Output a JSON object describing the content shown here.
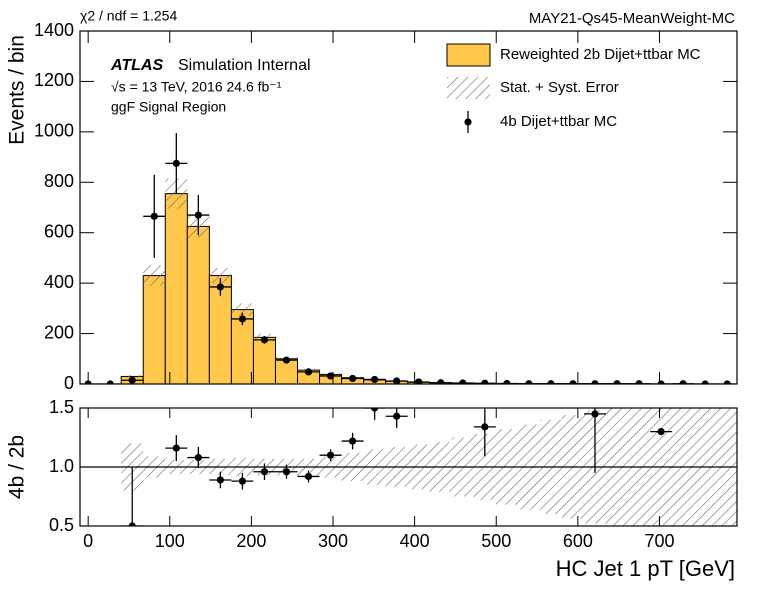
{
  "header": {
    "chi2": "χ2 / ndf = 1.254",
    "tag": "MAY21-Qs45-MeanWeight-MC"
  },
  "chart_data": [
    {
      "type": "histogram",
      "atlas": "ATLAS",
      "atlas_status": "Simulation Internal",
      "energy": "√s = 13 TeV, 2016 24.6 fb⁻¹",
      "region": "ggF Signal Region",
      "y_label": "Events / bin",
      "bins": [
        -13.5,
        13.5,
        40.5,
        67.5,
        94.5,
        121.5,
        148.5,
        175.5,
        202.5,
        229.5,
        256.5,
        283.5,
        310.5,
        337.5,
        364.5,
        391.5,
        418.5,
        445.5,
        472.5,
        499.5,
        526.5,
        553.5,
        580.5,
        607.5,
        634.5,
        661.5,
        688.5,
        715.5,
        742.5,
        769.5,
        796.5
      ],
      "series": [
        {
          "name": "Reweighted 2b Dijet+ttbar MC",
          "color": "#ffc84a",
          "values": [
            0,
            0,
            30,
            430,
            755,
            625,
            430,
            295,
            185,
            100,
            55,
            38,
            25,
            16,
            11,
            7,
            5,
            3,
            2,
            2,
            1,
            1,
            1,
            1,
            1,
            0.5,
            0.5,
            0.3,
            0.2,
            0.1
          ],
          "errors": [
            0,
            0,
            6,
            40,
            60,
            45,
            30,
            25,
            15,
            8,
            5,
            4,
            3,
            2,
            2,
            1,
            1,
            1,
            1,
            1,
            1,
            1,
            1,
            1,
            1,
            0.5,
            0.5,
            0.3,
            0.2,
            0.1
          ]
        },
        {
          "name": "Stat. + Syst. Error",
          "color": "#777777"
        },
        {
          "name": "4b Dijet+ttbar MC",
          "color": "#000000",
          "values": [
            0,
            0,
            15,
            665,
            875,
            670,
            385,
            258,
            175,
            95,
            48,
            32,
            22,
            18,
            12,
            8,
            5,
            4,
            3,
            2,
            1,
            1,
            1,
            1,
            1,
            1,
            0,
            1,
            0,
            0
          ],
          "errors": [
            0,
            0,
            10,
            165,
            120,
            80,
            35,
            25,
            15,
            10,
            7,
            6,
            5,
            4,
            3,
            3,
            2,
            2,
            2,
            1,
            1,
            1,
            1,
            1,
            1,
            1,
            0,
            1,
            0,
            0
          ]
        }
      ],
      "xlim": [
        -10,
        795
      ],
      "ylim": [
        0,
        1400
      ],
      "yticks": [
        0,
        200,
        400,
        600,
        800,
        1000,
        1200,
        1400
      ]
    },
    {
      "type": "ratio",
      "y_label": "4b / 2b",
      "x_label": "HC Jet 1 pT [GeV]",
      "ref_line": 1,
      "band": [
        null,
        null,
        0.2,
        0.09,
        0.06,
        0.06,
        0.07,
        0.08,
        0.07,
        0.07,
        0.07,
        0.09,
        0.12,
        0.15,
        0.17,
        0.19,
        0.21,
        0.25,
        0.28,
        0.32,
        0.36,
        0.4,
        0.44,
        0.48,
        0.5,
        0.5,
        0.5,
        0.5,
        0.5,
        0.5
      ],
      "values": [
        null,
        null,
        0.5,
        null,
        1.16,
        1.08,
        0.89,
        0.88,
        0.96,
        0.96,
        0.92,
        1.1,
        1.22,
        1.5,
        1.43,
        null,
        null,
        null,
        1.34,
        null,
        null,
        null,
        null,
        1.45,
        null,
        null,
        1.3,
        null,
        null,
        null
      ],
      "errors": [
        null,
        null,
        0.5,
        null,
        0.11,
        0.09,
        0.07,
        0.07,
        0.07,
        0.06,
        0.05,
        0.05,
        0.07,
        0.1,
        0.1,
        null,
        null,
        null,
        0.25,
        null,
        null,
        null,
        null,
        0.5,
        null,
        null,
        0.02,
        null,
        null,
        null
      ],
      "xlim": [
        -10,
        795
      ],
      "xticks": [
        0,
        100,
        200,
        300,
        400,
        500,
        600,
        700
      ],
      "ylim": [
        0.5,
        1.5
      ],
      "yticks": [
        0.5,
        {
          "value": 1,
          "label": "1.0"
        },
        1.5
      ]
    }
  ]
}
